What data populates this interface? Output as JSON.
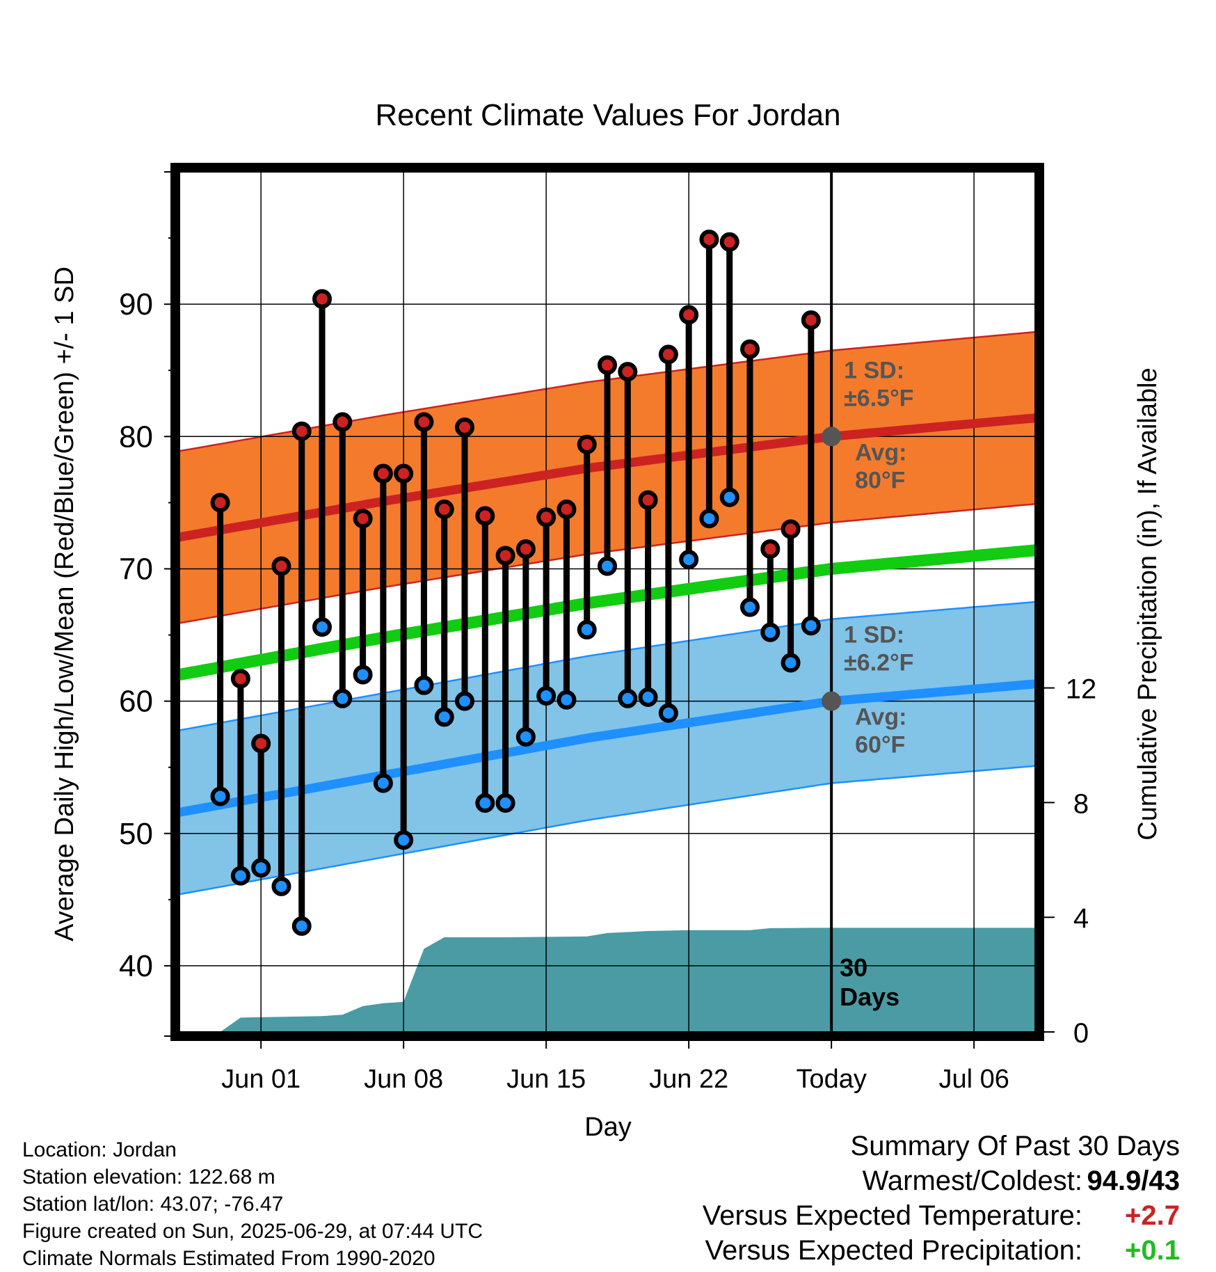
{
  "chart_data": {
    "type": "line",
    "title": "Recent Climate Values For Jordan",
    "xlabel": "Day",
    "ylabel_left": "Average Daily High/Low/Mean (Red/Blue/Green) +/- 1 SD",
    "ylabel_right": "Cumulative Precipitation (in), If Available",
    "ylim_left": [
      35,
      100
    ],
    "ylim_right": [
      0,
      30
    ],
    "y_ticks_left": [
      40,
      50,
      60,
      70,
      80,
      90
    ],
    "y_ticks_right": [
      0,
      4,
      8,
      12
    ],
    "x_ticks": [
      "2025-06-01",
      "2025-06-08",
      "2025-06-15",
      "2025-06-22",
      "2025-06-29",
      "2025-07-06"
    ],
    "x_tick_labels": [
      "Jun 01",
      "Jun 08",
      "Jun 15",
      "Jun 22",
      "Today",
      "Jul 06"
    ],
    "xlim": [
      "2025-05-28",
      "2025-07-09"
    ],
    "grid": true,
    "today": "2025-06-29",
    "today_label": "30\nDays",
    "series": [
      {
        "name": "High",
        "color": "#cc2222",
        "x": [
          "2025-05-30",
          "2025-05-31",
          "2025-06-01",
          "2025-06-02",
          "2025-06-03",
          "2025-06-04",
          "2025-06-05",
          "2025-06-06",
          "2025-06-07",
          "2025-06-08",
          "2025-06-09",
          "2025-06-10",
          "2025-06-11",
          "2025-06-12",
          "2025-06-13",
          "2025-06-14",
          "2025-06-15",
          "2025-06-16",
          "2025-06-17",
          "2025-06-18",
          "2025-06-19",
          "2025-06-20",
          "2025-06-21",
          "2025-06-22",
          "2025-06-23",
          "2025-06-24",
          "2025-06-25",
          "2025-06-26",
          "2025-06-27",
          "2025-06-28"
        ],
        "values": [
          75,
          61.7,
          56.8,
          70.2,
          80.4,
          90.4,
          81.1,
          73.8,
          77.2,
          77.2,
          81.1,
          74.5,
          80.7,
          74,
          71,
          71.5,
          73.9,
          74.5,
          79.4,
          85.4,
          84.9,
          75.2,
          86.2,
          89.2,
          94.9,
          94.7,
          86.6,
          71.5,
          73,
          88.8
        ]
      },
      {
        "name": "Low",
        "color": "#1e90ff",
        "x": [
          "2025-05-30",
          "2025-05-31",
          "2025-06-01",
          "2025-06-02",
          "2025-06-03",
          "2025-06-04",
          "2025-06-05",
          "2025-06-06",
          "2025-06-07",
          "2025-06-08",
          "2025-06-09",
          "2025-06-10",
          "2025-06-11",
          "2025-06-12",
          "2025-06-13",
          "2025-06-14",
          "2025-06-15",
          "2025-06-16",
          "2025-06-17",
          "2025-06-18",
          "2025-06-19",
          "2025-06-20",
          "2025-06-21",
          "2025-06-22",
          "2025-06-23",
          "2025-06-24",
          "2025-06-25",
          "2025-06-26",
          "2025-06-27",
          "2025-06-28"
        ],
        "values": [
          52.8,
          46.8,
          47.4,
          46,
          43,
          65.6,
          60.2,
          62,
          53.8,
          49.5,
          61.2,
          58.8,
          60,
          52.3,
          52.3,
          57.3,
          60.4,
          60.1,
          65.4,
          70.2,
          60.2,
          60.3,
          59.1,
          70.7,
          73.8,
          75.4,
          67.1,
          65.2,
          62.9,
          65.7
        ]
      },
      {
        "name": "Normal High",
        "color": "#cc2222",
        "band_color": "#f47b2c",
        "x": [
          "2025-05-28",
          "2025-06-07",
          "2025-06-17",
          "2025-06-29",
          "2025-07-09"
        ],
        "values": [
          72.4,
          75.1,
          77.6,
          80,
          81.4
        ],
        "sd": 6.5
      },
      {
        "name": "Normal Low",
        "color": "#1e90ff",
        "band_color": "#82c3e8",
        "x": [
          "2025-05-28",
          "2025-06-07",
          "2025-06-17",
          "2025-06-29",
          "2025-07-09"
        ],
        "values": [
          51.6,
          54.4,
          57.2,
          60,
          61.3
        ],
        "sd": 6.2
      },
      {
        "name": "Normal Mean",
        "color": "#11cc11",
        "x": [
          "2025-05-28",
          "2025-06-07",
          "2025-06-17",
          "2025-06-29",
          "2025-07-09"
        ],
        "values": [
          62,
          64.8,
          67.4,
          70,
          71.4
        ]
      },
      {
        "name": "Cumulative Precipitation",
        "color": "#4a9ba4",
        "axis": "right",
        "type": "area",
        "x": [
          "2025-05-30",
          "2025-05-31",
          "2025-06-04",
          "2025-06-05",
          "2025-06-06",
          "2025-06-07",
          "2025-06-08",
          "2025-06-09",
          "2025-06-10",
          "2025-06-13",
          "2025-06-17",
          "2025-06-18",
          "2025-06-20",
          "2025-06-22",
          "2025-06-25",
          "2025-06-26",
          "2025-06-28",
          "2025-07-09"
        ],
        "values": [
          0,
          0.5,
          0.55,
          0.6,
          0.9,
          1.0,
          1.05,
          2.9,
          3.3,
          3.3,
          3.33,
          3.45,
          3.52,
          3.55,
          3.55,
          3.62,
          3.63,
          3.63
        ]
      }
    ],
    "annotations": [
      {
        "text": "1 SD:\n±6.5°F",
        "date": "2025-06-29",
        "y": 80,
        "series": "Normal High"
      },
      {
        "text": "Avg:\n80°F",
        "date": "2025-06-29",
        "y": 80
      },
      {
        "text": "1 SD:\n±6.2°F",
        "date": "2025-06-29",
        "y": 60,
        "series": "Normal Low"
      },
      {
        "text": "Avg:\n60°F",
        "date": "2025-06-29",
        "y": 60
      }
    ]
  },
  "info": {
    "location": "Location: Jordan",
    "elevation": "Station elevation: 122.68 m",
    "latlon": "Station lat/lon: 43.07; -76.47",
    "created": "Figure created on Sun, 2025-06-29, at 07:44 UTC",
    "normals": "Climate Normals Estimated From 1990-2020"
  },
  "summary": {
    "title": "Summary Of Past 30 Days",
    "warmest_coldest_label": "Warmest/Coldest:",
    "warmest_coldest_value": "94.9/43",
    "temp_label": "Versus Expected Temperature:",
    "temp_value": "+2.7",
    "temp_color": "#cc2222",
    "precip_label": "Versus Expected Precipitation:",
    "precip_value": "+0.1",
    "precip_color": "#22bb22"
  }
}
